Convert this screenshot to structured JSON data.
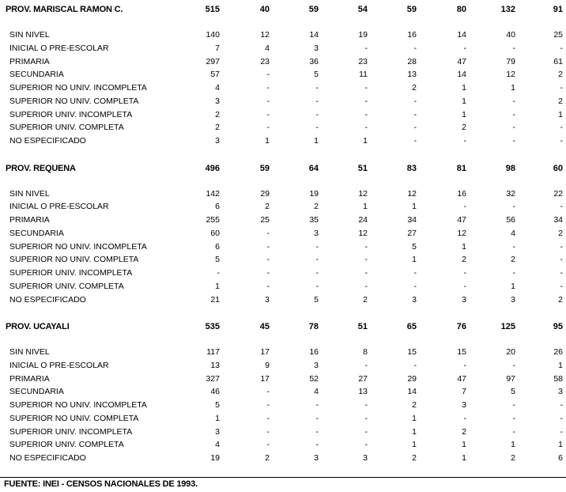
{
  "sections": [
    {
      "name": "PROV. MARISCAL RAMON C.",
      "totals": [
        "515",
        "40",
        "59",
        "54",
        "59",
        "80",
        "132",
        "91"
      ],
      "rows": [
        {
          "label": "SIN NIVEL",
          "values": [
            "140",
            "12",
            "14",
            "19",
            "16",
            "14",
            "40",
            "25"
          ]
        },
        {
          "label": "INICIAL O PRE-ESCOLAR",
          "values": [
            "7",
            "4",
            "3",
            "-",
            "-",
            "-",
            "-",
            "-"
          ]
        },
        {
          "label": "PRIMARIA",
          "values": [
            "297",
            "23",
            "36",
            "23",
            "28",
            "47",
            "79",
            "61"
          ]
        },
        {
          "label": "SECUNDARIA",
          "values": [
            "57",
            "-",
            "5",
            "11",
            "13",
            "14",
            "12",
            "2"
          ]
        },
        {
          "label": "SUPERIOR NO UNIV. INCOMPLETA",
          "values": [
            "4",
            "-",
            "-",
            "-",
            "2",
            "1",
            "1",
            "-"
          ]
        },
        {
          "label": "SUPERIOR NO UNIV. COMPLETA",
          "values": [
            "3",
            "-",
            "-",
            "-",
            "-",
            "1",
            "-",
            "2"
          ]
        },
        {
          "label": "SUPERIOR UNIV. INCOMPLETA",
          "values": [
            "2",
            "-",
            "-",
            "-",
            "-",
            "1",
            "-",
            "1"
          ]
        },
        {
          "label": "SUPERIOR UNIV. COMPLETA",
          "values": [
            "2",
            "-",
            "-",
            "-",
            "-",
            "2",
            "-",
            "-"
          ]
        },
        {
          "label": "NO ESPECIFICADO",
          "values": [
            "3",
            "1",
            "1",
            "1",
            "-",
            "-",
            "-",
            "-"
          ]
        }
      ]
    },
    {
      "name": "PROV. REQUENA",
      "totals": [
        "496",
        "59",
        "64",
        "51",
        "83",
        "81",
        "98",
        "60"
      ],
      "rows": [
        {
          "label": "SIN NIVEL",
          "values": [
            "142",
            "29",
            "19",
            "12",
            "12",
            "16",
            "32",
            "22"
          ]
        },
        {
          "label": "INICIAL O PRE-ESCOLAR",
          "values": [
            "6",
            "2",
            "2",
            "1",
            "1",
            "-",
            "-",
            "-"
          ]
        },
        {
          "label": "PRIMARIA",
          "values": [
            "255",
            "25",
            "35",
            "24",
            "34",
            "47",
            "56",
            "34"
          ]
        },
        {
          "label": "SECUNDARIA",
          "values": [
            "60",
            "-",
            "3",
            "12",
            "27",
            "12",
            "4",
            "2"
          ]
        },
        {
          "label": "SUPERIOR NO UNIV. INCOMPLETA",
          "values": [
            "6",
            "-",
            "-",
            "-",
            "5",
            "1",
            "-",
            "-"
          ]
        },
        {
          "label": "SUPERIOR NO UNIV. COMPLETA",
          "values": [
            "5",
            "-",
            "-",
            "-",
            "1",
            "2",
            "2",
            "-"
          ]
        },
        {
          "label": "SUPERIOR UNIV. INCOMPLETA",
          "values": [
            "-",
            "-",
            "-",
            "-",
            "-",
            "-",
            "-",
            "-"
          ]
        },
        {
          "label": "SUPERIOR UNIV. COMPLETA",
          "values": [
            "1",
            "-",
            "-",
            "-",
            "-",
            "-",
            "1",
            "-"
          ]
        },
        {
          "label": "NO ESPECIFICADO",
          "values": [
            "21",
            "3",
            "5",
            "2",
            "3",
            "3",
            "3",
            "2"
          ]
        }
      ]
    },
    {
      "name": "PROV. UCAYALI",
      "totals": [
        "535",
        "45",
        "78",
        "51",
        "65",
        "76",
        "125",
        "95"
      ],
      "rows": [
        {
          "label": "SIN NIVEL",
          "values": [
            "117",
            "17",
            "16",
            "8",
            "15",
            "15",
            "20",
            "26"
          ]
        },
        {
          "label": "INICIAL O PRE-ESCOLAR",
          "values": [
            "13",
            "9",
            "3",
            "-",
            "-",
            "-",
            "-",
            "1"
          ]
        },
        {
          "label": "PRIMARIA",
          "values": [
            "327",
            "17",
            "52",
            "27",
            "29",
            "47",
            "97",
            "58"
          ]
        },
        {
          "label": "SECUNDARIA",
          "values": [
            "46",
            "-",
            "4",
            "13",
            "14",
            "7",
            "5",
            "3"
          ]
        },
        {
          "label": "SUPERIOR NO UNIV. INCOMPLETA",
          "values": [
            "5",
            "-",
            "-",
            "-",
            "2",
            "3",
            "-",
            "-"
          ]
        },
        {
          "label": "SUPERIOR NO UNIV. COMPLETA",
          "values": [
            "1",
            "-",
            "-",
            "-",
            "1",
            "-",
            "-",
            "-"
          ]
        },
        {
          "label": "SUPERIOR UNIV. INCOMPLETA",
          "values": [
            "3",
            "-",
            "-",
            "-",
            "1",
            "2",
            "-",
            "-"
          ]
        },
        {
          "label": "SUPERIOR UNIV. COMPLETA",
          "values": [
            "4",
            "-",
            "-",
            "-",
            "1",
            "1",
            "1",
            "1"
          ]
        },
        {
          "label": "NO ESPECIFICADO",
          "values": [
            "19",
            "2",
            "3",
            "3",
            "2",
            "1",
            "2",
            "6"
          ]
        }
      ]
    }
  ],
  "footer": "FUENTE: INEI - CENSOS NACIONALES DE 1993."
}
